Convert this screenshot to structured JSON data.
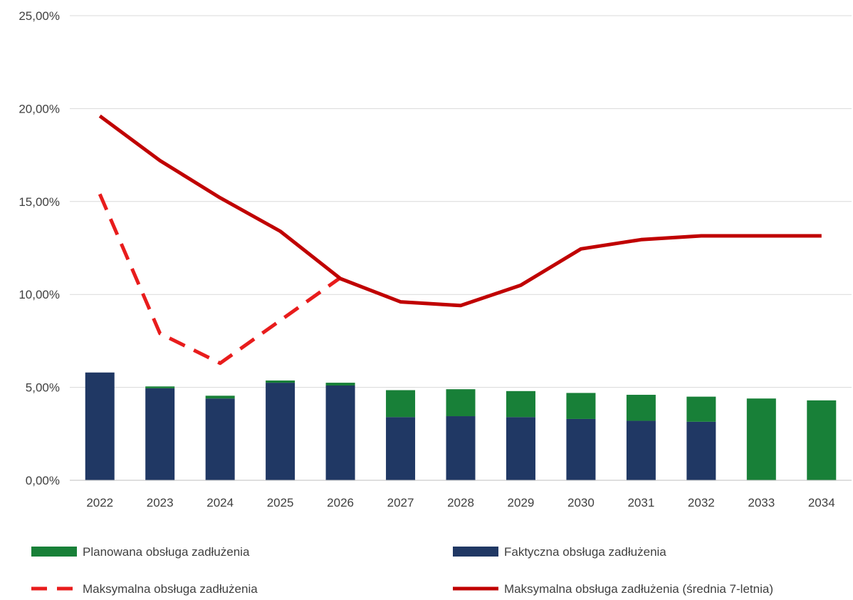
{
  "chart_data": {
    "type": "bar",
    "stacked": true,
    "categories": [
      "2022",
      "2023",
      "2024",
      "2025",
      "2026",
      "2027",
      "2028",
      "2029",
      "2030",
      "2031",
      "2032",
      "2033",
      "2034"
    ],
    "ylim": [
      0,
      25
    ],
    "yticks": [
      0,
      5,
      10,
      15,
      20,
      25
    ],
    "ytick_labels": [
      "0,00%",
      "5,00%",
      "10,00%",
      "15,00%",
      "20,00%",
      "25,00%"
    ],
    "grid": true,
    "legend_position": "bottom",
    "colors": {
      "actual": "#203864",
      "planned": "#188038",
      "max": "#e81c1c",
      "avg": "#c00000"
    },
    "bar_series": [
      {
        "key": "actual",
        "name": "Faktyczna obsługa zadłużenia",
        "values": [
          5.8,
          4.95,
          4.4,
          5.25,
          5.1,
          3.4,
          3.45,
          3.4,
          3.3,
          3.2,
          3.15,
          0,
          0
        ]
      },
      {
        "key": "planned",
        "name": "Planowana obsługa zadłużenia",
        "values": [
          0,
          0.1,
          0.15,
          0.12,
          0.15,
          1.45,
          1.45,
          1.4,
          1.4,
          1.4,
          1.35,
          4.4,
          4.3
        ]
      }
    ],
    "line_series": [
      {
        "key": "max",
        "name": "Maksymalna obsługa zadłużenia",
        "dashed": true,
        "values": [
          15.4,
          7.9,
          6.3,
          8.6,
          10.9,
          null,
          null,
          null,
          null,
          null,
          null,
          null,
          null
        ]
      },
      {
        "key": "avg",
        "name": "Maksymalna obsługa zadłużenia (średnia 7-letnia)",
        "dashed": false,
        "values": [
          19.6,
          17.2,
          15.2,
          13.4,
          10.85,
          9.6,
          9.4,
          10.5,
          12.45,
          12.95,
          13.15,
          13.15,
          13.15
        ]
      }
    ],
    "legend": [
      {
        "key": "planned",
        "label": "Planowana obsługa zadłużenia",
        "marker": "bar"
      },
      {
        "key": "actual",
        "label": "Faktyczna obsługa zadłużenia",
        "marker": "bar"
      },
      {
        "key": "max",
        "label": "Maksymalna obsługa zadłużenia",
        "marker": "dashed-line"
      },
      {
        "key": "avg",
        "label": "Maksymalna obsługa zadłużenia (średnia 7-letnia)",
        "marker": "line"
      }
    ]
  }
}
